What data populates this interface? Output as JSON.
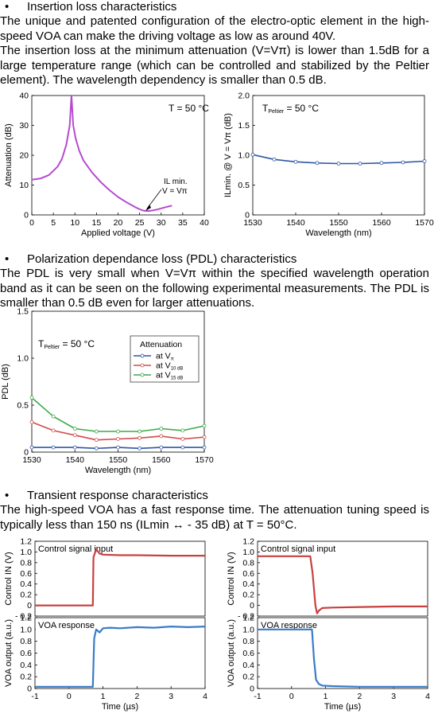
{
  "sections": [
    {
      "heading": "Insertion loss characteristics",
      "paragraphs": [
        "The unique and patented configuration of the electro-optic element in the high-speed VOA can make the driving voltage as low as around 40V.",
        "The insertion loss at the minimum attenuation (V=Vπ) is lower than 1.5dB for a large temperature range (which can be controlled and stabilized by the Peltier element). The wavelength dependency is smaller than 0.5 dB."
      ]
    },
    {
      "heading": "Polarization dependance loss (PDL) characteristics",
      "paragraphs": [
        "The PDL is very small when V=Vπ within the specified wavelength operation band as it can be seen on the following experimental measurements. The PDL is smaller than 0.5 dB even for larger attenuations."
      ]
    },
    {
      "heading": "Transient response characteristics",
      "paragraphs": [
        "The high-speed VOA has a fast response time. The attenuation tuning speed is typically less than 150 ns (ILmin ↔ - 35 dB) at T = 50°C."
      ]
    }
  ],
  "chart_data": [
    {
      "id": "attenuation_vs_voltage",
      "type": "line",
      "xlabel": "Applied voltage (V)",
      "ylabel": "Attenuation (dB)",
      "xlim": [
        0,
        40
      ],
      "ylim": [
        0,
        40
      ],
      "xticks": [
        "0",
        "5",
        "10",
        "15",
        "20",
        "25",
        "30",
        "35",
        "40"
      ],
      "yticks": [
        "0",
        "10",
        "20",
        "30",
        "40"
      ],
      "annotation_main": "T = 50 °C",
      "annotation_callout": [
        "IL min.",
        "V = Vπ"
      ],
      "color": "#b64ad1",
      "series": [
        {
          "x": [
            0,
            2,
            4,
            6,
            7,
            8,
            8.8,
            9.2,
            9.6,
            10.2,
            11,
            12,
            14,
            16,
            18,
            20,
            22,
            24,
            25,
            26,
            27,
            28,
            29,
            30,
            31,
            32.5
          ],
          "values": [
            11.8,
            12.2,
            13.4,
            16.2,
            18.8,
            23.5,
            30,
            40,
            30,
            25.5,
            21.5,
            18.2,
            14.2,
            11,
            8.3,
            6,
            4.2,
            2.6,
            1.9,
            1.4,
            1.3,
            1.5,
            1.8,
            2.2,
            2.6,
            3.1
          ]
        }
      ]
    },
    {
      "id": "ilmin_vs_wavelength",
      "type": "line",
      "xlabel": "Wavelength (nm)",
      "ylabel": "ILmin. @ V = Vπ (dB)",
      "xlim": [
        1530,
        1570
      ],
      "ylim": [
        0,
        2.0
      ],
      "xticks": [
        "1530",
        "1540",
        "1550",
        "1560",
        "1570"
      ],
      "yticks": [
        "0",
        "0.5",
        "1.0",
        "1.5",
        "2.0"
      ],
      "annotation_main": "T",
      "annotation_sub": "Peltier",
      "annotation_rest": " = 50 °C",
      "color": "#2f56a3",
      "series": [
        {
          "x": [
            1530,
            1535,
            1540,
            1545,
            1550,
            1555,
            1560,
            1565,
            1570
          ],
          "values": [
            1.01,
            0.93,
            0.89,
            0.87,
            0.86,
            0.86,
            0.87,
            0.88,
            0.9
          ]
        }
      ]
    },
    {
      "id": "pdl_vs_wavelength",
      "type": "line",
      "xlabel": "Wavelength (nm)",
      "ylabel": "PDL (dB)",
      "xlim": [
        1530,
        1570
      ],
      "ylim": [
        0,
        1.5
      ],
      "xticks": [
        "1530",
        "1540",
        "1550",
        "1560",
        "1570"
      ],
      "yticks": [
        "0",
        "0.5",
        "1.0",
        "1.5"
      ],
      "annotation_main": "T",
      "annotation_sub": "Peltier",
      "annotation_rest": " = 50 °C",
      "legend_title": "Attenuation",
      "x": [
        1530,
        1535,
        1540,
        1545,
        1550,
        1555,
        1560,
        1565,
        1570
      ],
      "series": [
        {
          "name": "at V",
          "sub": "π",
          "color": "#2f56a3",
          "values": [
            0.05,
            0.05,
            0.05,
            0.04,
            0.05,
            0.04,
            0.05,
            0.05,
            0.05
          ]
        },
        {
          "name": "at V",
          "sub": "10 dB",
          "color": "#d24b4b",
          "values": [
            0.32,
            0.23,
            0.18,
            0.13,
            0.14,
            0.15,
            0.17,
            0.14,
            0.16
          ]
        },
        {
          "name": "at V",
          "sub": "15 dB",
          "color": "#3ea94b",
          "values": [
            0.58,
            0.38,
            0.25,
            0.22,
            0.22,
            0.22,
            0.25,
            0.23,
            0.28
          ]
        }
      ]
    },
    {
      "id": "rise_control",
      "type": "line",
      "ylabel": "Control IN (V)",
      "panel_label": "Control signal input",
      "ylim": [
        -0.2,
        1.2
      ],
      "yticks": [
        "1.2",
        "1.0",
        "0.8",
        "0.6",
        "0.4",
        "0.2",
        "0",
        "- 0.2"
      ],
      "color": "#c94040",
      "series": [
        {
          "x": [
            -1,
            0.7,
            0.72,
            0.8,
            0.9,
            1.0,
            1.5,
            2,
            3,
            4
          ],
          "values": [
            0.0,
            0.0,
            0.9,
            1.05,
            0.97,
            0.95,
            0.94,
            0.94,
            0.93,
            0.93
          ]
        }
      ]
    },
    {
      "id": "rise_response",
      "type": "line",
      "xlabel": "Time (µs)",
      "ylabel": "VOA output (a.u.)",
      "panel_label": "VOA response",
      "xlim": [
        -1,
        4
      ],
      "xticks": [
        "-1",
        "0",
        "1",
        "2",
        "3",
        "4"
      ],
      "ylim": [
        0,
        1.2
      ],
      "yticks": [
        "1.2",
        "1.0",
        "0.8",
        "0.6",
        "0.4",
        "0.2",
        "0"
      ],
      "color": "#3a7bc8",
      "series": [
        {
          "x": [
            -1,
            0.7,
            0.74,
            0.8,
            0.9,
            1.0,
            1.2,
            1.5,
            2,
            2.5,
            3,
            3.5,
            4
          ],
          "values": [
            0.03,
            0.03,
            0.85,
            1.0,
            0.95,
            1.02,
            1.03,
            1.02,
            1.04,
            1.03,
            1.05,
            1.04,
            1.05
          ]
        }
      ]
    },
    {
      "id": "fall_control",
      "type": "line",
      "ylabel": "Control IN (V)",
      "panel_label": "Control signal input",
      "ylim": [
        -0.2,
        1.2
      ],
      "yticks": [
        "1.2",
        "1.0",
        "0.8",
        "0.6",
        "0.4",
        "0.2",
        "0",
        "- 0.2"
      ],
      "color": "#c94040",
      "series": [
        {
          "x": [
            -1,
            0.55,
            0.62,
            0.7,
            0.75,
            0.8,
            0.9,
            1.2,
            2,
            3,
            4
          ],
          "values": [
            0.92,
            0.92,
            0.6,
            0.0,
            -0.15,
            -0.1,
            -0.05,
            -0.04,
            -0.03,
            -0.02,
            -0.02
          ]
        }
      ]
    },
    {
      "id": "fall_response",
      "type": "line",
      "xlabel": "Time (µs)",
      "ylabel": "VOA output (a.u.)",
      "panel_label": "VOA response",
      "xlim": [
        -1,
        4
      ],
      "xticks": [
        "-1",
        "0",
        "1",
        "2",
        "3",
        "4"
      ],
      "ylim": [
        0,
        1.2
      ],
      "yticks": [
        "1.2",
        "1.0",
        "0.8",
        "0.6",
        "0.4",
        "0.2",
        "0"
      ],
      "color": "#3a7bc8",
      "series": [
        {
          "x": [
            -1,
            0.6,
            0.66,
            0.72,
            0.8,
            0.9,
            1.2,
            2,
            3,
            4
          ],
          "values": [
            1.0,
            1.0,
            0.5,
            0.15,
            0.08,
            0.05,
            0.04,
            0.03,
            0.03,
            0.03
          ]
        }
      ]
    }
  ]
}
